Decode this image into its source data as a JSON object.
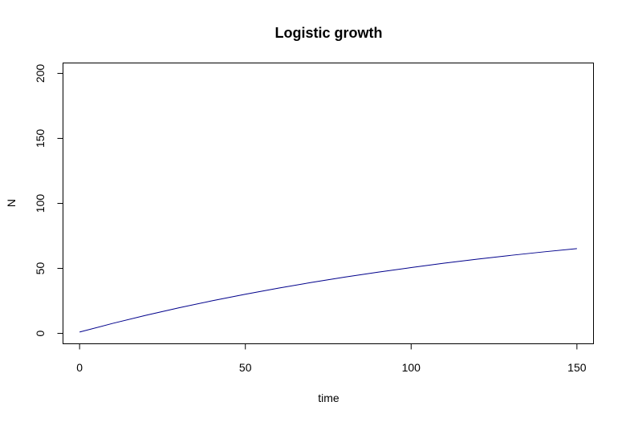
{
  "chart_data": {
    "type": "line",
    "title": "Logistic growth",
    "xlabel": "time",
    "ylabel": "N",
    "xlim": [
      -5,
      155
    ],
    "ylim": [
      -8,
      208
    ],
    "x_ticks": [
      0,
      50,
      100,
      150
    ],
    "y_ticks": [
      0,
      50,
      100,
      150,
      200
    ],
    "grid": false,
    "series_color": "#00008b",
    "series": [
      {
        "points": [
          [
            0,
            1
          ],
          [
            10,
            7.7
          ],
          [
            20,
            13.9
          ],
          [
            30,
            19.7
          ],
          [
            40,
            25.1
          ],
          [
            50,
            30.1
          ],
          [
            60,
            34.8
          ],
          [
            70,
            39.2
          ],
          [
            80,
            43.3
          ],
          [
            90,
            47.1
          ],
          [
            100,
            50.6
          ],
          [
            110,
            54.0
          ],
          [
            120,
            57.1
          ],
          [
            130,
            60.0
          ],
          [
            140,
            62.7
          ],
          [
            150,
            65.2
          ]
        ]
      }
    ]
  }
}
